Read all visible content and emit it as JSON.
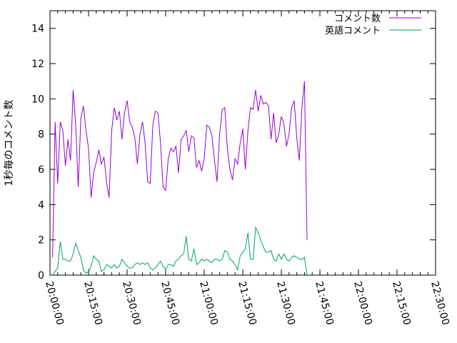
{
  "chart_data": {
    "type": "line",
    "ylabel": "1秒毎のコメント数",
    "ylim": [
      0,
      15
    ],
    "y_ticks": [
      0,
      2,
      4,
      6,
      8,
      10,
      12,
      14
    ],
    "x_range": [
      "20:00:00",
      "22:30:00"
    ],
    "x_ticks": [
      "20:00:00",
      "20:15:00",
      "20:30:00",
      "20:45:00",
      "21:00:00",
      "21:15:00",
      "21:30:00",
      "21:45:00",
      "22:00:00",
      "22:15:00",
      "22:30:00"
    ],
    "x_sample_seconds": 60,
    "legend_position": "top-right",
    "grid": false,
    "series": [
      {
        "name": "コメント数",
        "color": "#9400d3",
        "start": "20:01:00",
        "values": [
          1.0,
          8.7,
          5.2,
          8.7,
          8.2,
          6.2,
          7.7,
          6.5,
          10.5,
          8.5,
          5.0,
          8.9,
          9.6,
          8.2,
          7.2,
          4.4,
          5.8,
          6.4,
          7.1,
          6.3,
          6.7,
          5.3,
          4.4,
          8.2,
          9.5,
          8.8,
          9.3,
          7.7,
          9.2,
          9.9,
          8.7,
          8.4,
          7.8,
          6.3,
          8.0,
          8.7,
          7.5,
          5.3,
          5.2,
          8.5,
          9.3,
          9.2,
          7.5,
          5.0,
          4.8,
          6.6,
          7.2,
          7.0,
          7.3,
          5.8,
          7.7,
          7.9,
          8.2,
          7.0,
          7.9,
          7.8,
          6.1,
          6.5,
          5.9,
          6.6,
          8.5,
          8.4,
          7.9,
          6.5,
          5.3,
          8.0,
          9.4,
          9.5,
          7.2,
          6.0,
          5.4,
          6.6,
          6.3,
          7.5,
          8.3,
          6.0,
          8.2,
          9.5,
          9.4,
          10.5,
          9.3,
          10.2,
          9.7,
          9.8,
          9.6,
          7.7,
          9.2,
          7.5,
          8.0,
          9.0,
          8.6,
          7.3,
          8.0,
          9.5,
          9.9,
          7.8,
          6.5,
          9.5,
          11.0,
          2.0
        ]
      },
      {
        "name": "英語コメント",
        "color": "#009e73",
        "start": "20:01:00",
        "values": [
          0.0,
          0.2,
          0.4,
          1.9,
          0.9,
          0.9,
          0.8,
          0.8,
          1.2,
          1.8,
          1.4,
          1.0,
          0.3,
          0.1,
          0.2,
          0.5,
          1.1,
          0.9,
          0.8,
          0.2,
          0.3,
          0.6,
          0.5,
          0.4,
          0.6,
          0.4,
          0.5,
          0.9,
          0.7,
          0.5,
          0.4,
          0.4,
          0.6,
          0.7,
          0.6,
          0.7,
          0.6,
          0.7,
          0.4,
          0.3,
          0.4,
          0.6,
          0.8,
          0.5,
          0.3,
          0.6,
          0.6,
          0.5,
          0.8,
          0.9,
          1.1,
          1.2,
          2.2,
          0.9,
          0.8,
          1.5,
          0.6,
          0.7,
          0.9,
          0.8,
          0.9,
          0.8,
          0.7,
          0.9,
          0.9,
          0.8,
          0.9,
          1.4,
          1.3,
          0.9,
          0.8,
          0.6,
          0.3,
          1.1,
          1.3,
          1.5,
          2.4,
          0.9,
          0.9,
          2.7,
          2.4,
          2.0,
          1.6,
          1.3,
          1.3,
          1.4,
          0.9,
          0.8,
          1.2,
          0.9,
          1.2,
          0.9,
          0.8,
          1.0,
          1.1,
          1.0,
          0.9,
          0.9,
          1.0,
          0.0
        ]
      }
    ]
  }
}
